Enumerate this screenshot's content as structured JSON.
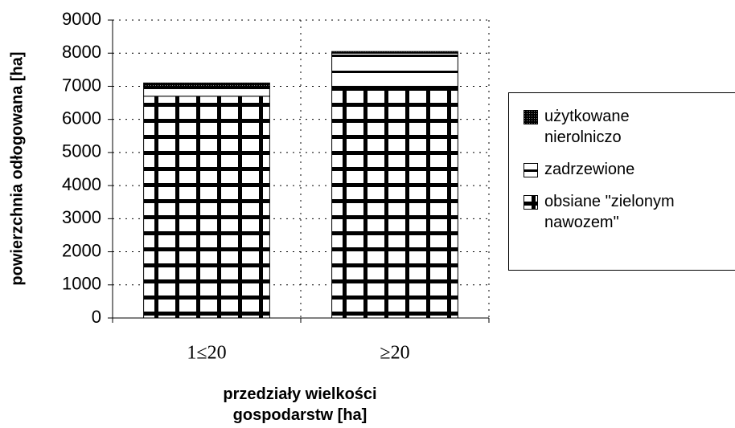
{
  "chart_data": {
    "type": "stacked_bar",
    "y_label": "powierzchnia odłogowana [ha]",
    "x_label": "przedziały wielkości gospodarstw [ha]",
    "categories": [
      "1≤20",
      "≥20"
    ],
    "series": [
      {
        "name": "obsiane \"zielonym nawozem\"",
        "color": "#000000",
        "values": [
          6700,
          7000
        ]
      },
      {
        "name": "zadrzewione",
        "color": "#000000",
        "values": [
          300,
          1000
        ]
      },
      {
        "name": "użytkowane nierolniczo",
        "color": "#000000",
        "values": [
          100,
          50
        ]
      }
    ],
    "ylim": [
      0,
      9000
    ],
    "yticks": [
      0,
      1000,
      2000,
      3000,
      4000,
      5000,
      6000,
      7000,
      8000,
      9000
    ],
    "grid": true,
    "legend": "right"
  }
}
